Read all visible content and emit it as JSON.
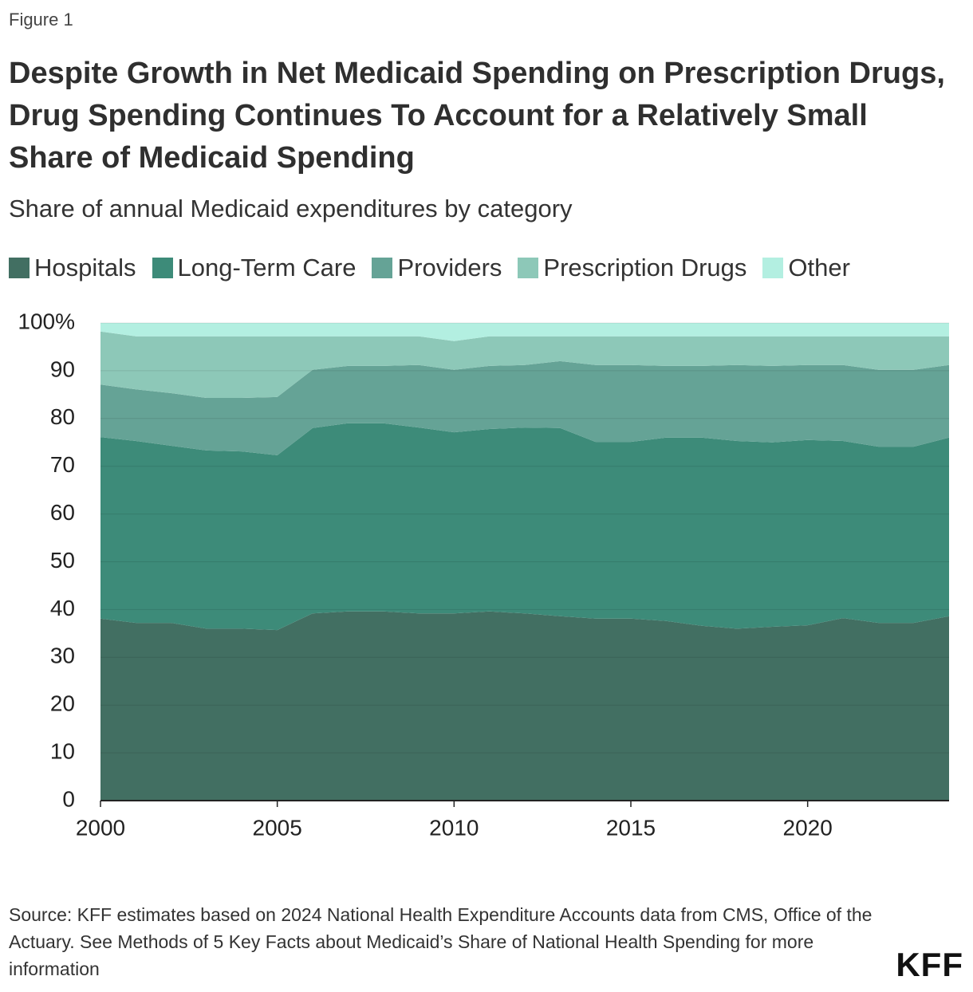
{
  "figure_label": "Figure 1",
  "source": "Source: KFF estimates based on 2024 National Health Expenditure Accounts data from CMS, Office of the Actuary. See Methods of 5 Key Facts about Medicaid’s Share of National Health Spending for more information",
  "logo": "KFF",
  "chart_data": {
    "type": "stacked_area",
    "title": "Despite Growth in Net Medicaid Spending on Prescription Drugs, Drug Spending Continues To Account for a Relatively Small Share of Medicaid Spending",
    "subtitle": "Share of annual Medicaid expenditures by category",
    "x": [
      2000,
      2001,
      2002,
      2003,
      2004,
      2005,
      2006,
      2007,
      2008,
      2009,
      2010,
      2011,
      2012,
      2013,
      2014,
      2015,
      2016,
      2017,
      2018,
      2019,
      2020,
      2021,
      2022,
      2023,
      2024
    ],
    "xlim": [
      2000,
      2024
    ],
    "xticks": [
      2000,
      2005,
      2010,
      2015,
      2020
    ],
    "ylim": [
      0,
      100
    ],
    "yticks": [
      0,
      10,
      20,
      30,
      40,
      50,
      60,
      70,
      80,
      90,
      {
        "value": 100,
        "label": "100%"
      }
    ],
    "grid": true,
    "legend": "top-left",
    "series": [
      {
        "name": "Hospitals",
        "color": "#426f62",
        "values": [
          38.1,
          37.2,
          37.2,
          36,
          36,
          35.7,
          39.2,
          39.6,
          39.6,
          39.2,
          39.2,
          39.6,
          39.2,
          38.6,
          38.1,
          38.1,
          37.6,
          36.6,
          36,
          36.4,
          36.7,
          38.2,
          37.2,
          37.2,
          38.6
        ]
      },
      {
        "name": "Long-Term Care",
        "color": "#3d8b79",
        "values": [
          38,
          38.1,
          37.1,
          37.3,
          37.1,
          36.6,
          38.8,
          39.4,
          39.4,
          38.9,
          37.9,
          38.2,
          38.9,
          39.4,
          37,
          37,
          38.4,
          39.4,
          39.3,
          38.6,
          38.8,
          37.1,
          36.9,
          36.9,
          37.4
        ]
      },
      {
        "name": "Providers",
        "color": "#65a396",
        "values": [
          11,
          10.8,
          11,
          11,
          11.2,
          12.2,
          12.2,
          12,
          12,
          13.1,
          13.1,
          13.2,
          13.1,
          14,
          16.1,
          16.1,
          15,
          15,
          15.9,
          16,
          15.7,
          15.9,
          16.1,
          16.1,
          15.2
        ]
      },
      {
        "name": "Prescription Drugs",
        "color": "#8dc8b8",
        "values": [
          11.1,
          11.1,
          11.9,
          12.9,
          12.9,
          12.7,
          7,
          6.2,
          6.2,
          6,
          6,
          6.2,
          6,
          5.2,
          6,
          6,
          6.2,
          6.2,
          6,
          6.2,
          6,
          6,
          7,
          7,
          6
        ]
      },
      {
        "name": "Other",
        "color": "#b3efe1",
        "values": [
          1.8,
          2.8,
          2.8,
          2.8,
          2.8,
          2.8,
          2.8,
          2.8,
          2.8,
          2.8,
          3.8,
          2.8,
          2.8,
          2.8,
          2.8,
          2.8,
          2.8,
          2.8,
          2.8,
          2.8,
          2.8,
          2.8,
          2.8,
          2.8,
          2.8
        ]
      }
    ]
  }
}
